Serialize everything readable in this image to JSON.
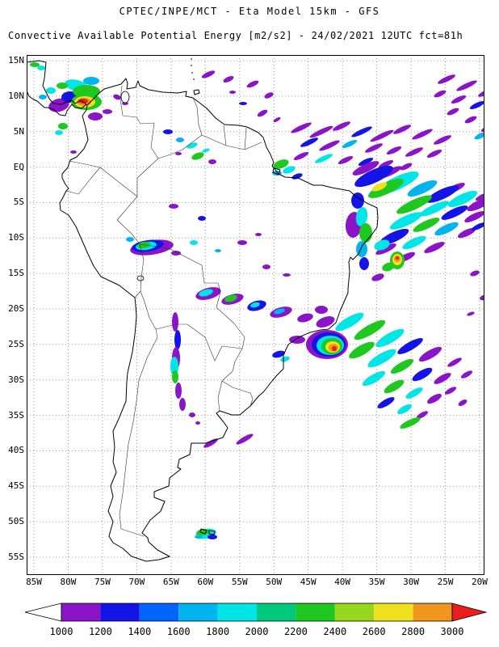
{
  "header": {
    "line1": "CPTEC/INPE/MCT -  Eta Model 15km - GFS",
    "line2": "Convective Available Potential Energy [m2/s2] - 24/02/2021 12UTC fct=81h"
  },
  "map": {
    "lat_labels": [
      "15N",
      "10N",
      "5N",
      "EQ",
      "5S",
      "10S",
      "15S",
      "20S",
      "25S",
      "30S",
      "35S",
      "40S",
      "45S",
      "50S",
      "55S"
    ],
    "lon_labels": [
      "85W",
      "80W",
      "75W",
      "70W",
      "65W",
      "60W",
      "55W",
      "50W",
      "45W",
      "40W",
      "35W",
      "30W",
      "25W",
      "20W"
    ]
  },
  "colorbar": {
    "unit": "m2/s2",
    "values": [
      "1000",
      "1200",
      "1400",
      "1600",
      "1800",
      "2000",
      "2200",
      "2400",
      "2600",
      "2800",
      "3000"
    ],
    "colors": [
      "#ffffff",
      "#8c14c8",
      "#1414e6",
      "#0064ff",
      "#00b4f0",
      "#00e6e6",
      "#00c87d",
      "#1ec81e",
      "#96d71e",
      "#f0e11e",
      "#f0961e",
      "#eb1e1e"
    ]
  }
}
